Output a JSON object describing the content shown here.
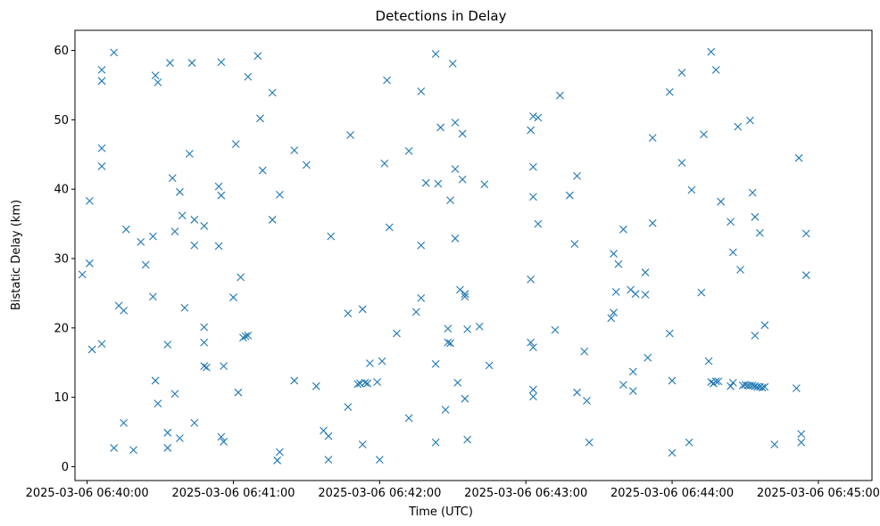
{
  "chart_data": {
    "type": "scatter",
    "title": "Detections in Delay",
    "xlabel": "Time (UTC)",
    "ylabel": "Bistatic Delay (km)",
    "marker": "x",
    "color": "#1f77b4",
    "grid": false,
    "legend": "none",
    "xlim": [
      "2025-03-06 06:39:55",
      "2025-03-06 06:45:22"
    ],
    "ylim": [
      -2.0,
      62.9
    ],
    "xticks": [
      {
        "value": "2025-03-06 06:40:00",
        "label": "2025-03-06 06:40:00"
      },
      {
        "value": "2025-03-06 06:41:00",
        "label": "2025-03-06 06:41:00"
      },
      {
        "value": "2025-03-06 06:42:00",
        "label": "2025-03-06 06:42:00"
      },
      {
        "value": "2025-03-06 06:43:00",
        "label": "2025-03-06 06:43:00"
      },
      {
        "value": "2025-03-06 06:44:00",
        "label": "2025-03-06 06:44:00"
      },
      {
        "value": "2025-03-06 06:45:00",
        "label": "2025-03-06 06:45:00"
      }
    ],
    "yticks": [
      0,
      10,
      20,
      30,
      40,
      50,
      60
    ],
    "points": [
      [
        "06:39:58",
        27.7
      ],
      [
        "06:40:01",
        38.3
      ],
      [
        "06:40:01",
        29.3
      ],
      [
        "06:40:02",
        16.9
      ],
      [
        "06:40:06",
        57.2
      ],
      [
        "06:40:06",
        55.6
      ],
      [
        "06:40:06",
        45.9
      ],
      [
        "06:40:06",
        43.3
      ],
      [
        "06:40:06",
        17.7
      ],
      [
        "06:40:11",
        59.7
      ],
      [
        "06:40:11",
        2.7
      ],
      [
        "06:40:13",
        23.2
      ],
      [
        "06:40:15",
        22.5
      ],
      [
        "06:40:15",
        6.3
      ],
      [
        "06:40:16",
        34.2
      ],
      [
        "06:40:19",
        2.4
      ],
      [
        "06:40:22",
        32.4
      ],
      [
        "06:40:24",
        29.1
      ],
      [
        "06:40:27",
        33.2
      ],
      [
        "06:40:27",
        24.5
      ],
      [
        "06:40:28",
        12.4
      ],
      [
        "06:40:28",
        56.4
      ],
      [
        "06:40:29",
        55.4
      ],
      [
        "06:40:29",
        9.1
      ],
      [
        "06:40:33",
        17.6
      ],
      [
        "06:40:33",
        4.9
      ],
      [
        "06:40:33",
        2.7
      ],
      [
        "06:40:34",
        58.2
      ],
      [
        "06:40:35",
        41.6
      ],
      [
        "06:40:36",
        33.9
      ],
      [
        "06:40:36",
        10.5
      ],
      [
        "06:40:38",
        39.6
      ],
      [
        "06:40:38",
        4.1
      ],
      [
        "06:40:39",
        36.2
      ],
      [
        "06:40:40",
        22.9
      ],
      [
        "06:40:42",
        45.1
      ],
      [
        "06:40:43",
        58.2
      ],
      [
        "06:40:44",
        35.6
      ],
      [
        "06:40:44",
        31.9
      ],
      [
        "06:40:44",
        6.3
      ],
      [
        "06:40:48",
        34.7
      ],
      [
        "06:40:48",
        20.1
      ],
      [
        "06:40:48",
        17.9
      ],
      [
        "06:40:48",
        14.5
      ],
      [
        "06:40:49",
        14.3
      ],
      [
        "06:40:54",
        40.4
      ],
      [
        "06:40:54",
        31.8
      ],
      [
        "06:40:55",
        58.3
      ],
      [
        "06:40:55",
        39.1
      ],
      [
        "06:40:56",
        14.5
      ],
      [
        "06:40:55",
        4.3
      ],
      [
        "06:40:56",
        3.6
      ],
      [
        "06:41:00",
        24.4
      ],
      [
        "06:41:01",
        46.5
      ],
      [
        "06:41:02",
        10.7
      ],
      [
        "06:41:03",
        27.3
      ],
      [
        "06:41:04",
        18.6
      ],
      [
        "06:41:05",
        18.8
      ],
      [
        "06:41:06",
        56.2
      ],
      [
        "06:41:06",
        18.9
      ],
      [
        "06:41:10",
        59.2
      ],
      [
        "06:41:11",
        50.2
      ],
      [
        "06:41:12",
        42.7
      ],
      [
        "06:41:16",
        53.9
      ],
      [
        "06:41:16",
        35.6
      ],
      [
        "06:41:18",
        0.9
      ],
      [
        "06:41:19",
        2.1
      ],
      [
        "06:41:19",
        39.2
      ],
      [
        "06:41:25",
        45.6
      ],
      [
        "06:41:25",
        12.4
      ],
      [
        "06:41:30",
        43.5
      ],
      [
        "06:41:34",
        11.6
      ],
      [
        "06:41:37",
        5.2
      ],
      [
        "06:41:39",
        4.4
      ],
      [
        "06:41:39",
        1.0
      ],
      [
        "06:41:40",
        33.2
      ],
      [
        "06:41:47",
        22.1
      ],
      [
        "06:41:47",
        8.6
      ],
      [
        "06:41:48",
        47.8
      ],
      [
        "06:41:51",
        11.9
      ],
      [
        "06:41:52",
        12.0
      ],
      [
        "06:41:53",
        22.7
      ],
      [
        "06:41:53",
        3.2
      ],
      [
        "06:41:54",
        12.1
      ],
      [
        "06:41:55",
        12.0
      ],
      [
        "06:41:56",
        14.9
      ],
      [
        "06:41:59",
        12.2
      ],
      [
        "06:42:00",
        1.0
      ],
      [
        "06:42:01",
        15.2
      ],
      [
        "06:42:02",
        43.7
      ],
      [
        "06:42:03",
        55.7
      ],
      [
        "06:42:04",
        34.5
      ],
      [
        "06:42:07",
        19.2
      ],
      [
        "06:42:12",
        45.5
      ],
      [
        "06:42:12",
        7.0
      ],
      [
        "06:42:15",
        22.3
      ],
      [
        "06:42:17",
        54.1
      ],
      [
        "06:42:17",
        31.9
      ],
      [
        "06:42:17",
        24.3
      ],
      [
        "06:42:19",
        40.9
      ],
      [
        "06:42:23",
        59.5
      ],
      [
        "06:42:24",
        40.8
      ],
      [
        "06:42:25",
        48.9
      ],
      [
        "06:42:23",
        14.8
      ],
      [
        "06:42:23",
        3.5
      ],
      [
        "06:42:27",
        8.2
      ],
      [
        "06:42:28",
        19.9
      ],
      [
        "06:42:28",
        17.9
      ],
      [
        "06:42:29",
        17.8
      ],
      [
        "06:42:29",
        38.4
      ],
      [
        "06:42:30",
        58.1
      ],
      [
        "06:42:31",
        32.9
      ],
      [
        "06:42:31",
        42.9
      ],
      [
        "06:42:31",
        49.6
      ],
      [
        "06:42:32",
        12.1
      ],
      [
        "06:42:33",
        25.5
      ],
      [
        "06:42:34",
        48.0
      ],
      [
        "06:42:34",
        41.4
      ],
      [
        "06:42:35",
        24.9
      ],
      [
        "06:42:35",
        24.5
      ],
      [
        "06:42:35",
        9.8
      ],
      [
        "06:42:36",
        19.8
      ],
      [
        "06:42:36",
        3.9
      ],
      [
        "06:42:41",
        20.2
      ],
      [
        "06:42:43",
        40.7
      ],
      [
        "06:42:45",
        14.6
      ],
      [
        "06:43:02",
        48.5
      ],
      [
        "06:43:02",
        27.0
      ],
      [
        "06:43:02",
        17.9
      ],
      [
        "06:43:03",
        50.5
      ],
      [
        "06:43:03",
        43.2
      ],
      [
        "06:43:03",
        38.9
      ],
      [
        "06:43:03",
        17.2
      ],
      [
        "06:43:03",
        11.1
      ],
      [
        "06:43:03",
        10.1
      ],
      [
        "06:43:05",
        50.3
      ],
      [
        "06:43:05",
        35.0
      ],
      [
        "06:43:12",
        19.7
      ],
      [
        "06:43:14",
        53.5
      ],
      [
        "06:43:18",
        39.1
      ],
      [
        "06:43:20",
        32.1
      ],
      [
        "06:43:21",
        41.9
      ],
      [
        "06:43:21",
        10.7
      ],
      [
        "06:43:24",
        16.6
      ],
      [
        "06:43:25",
        9.5
      ],
      [
        "06:43:26",
        3.5
      ],
      [
        "06:43:35",
        21.4
      ],
      [
        "06:43:36",
        30.7
      ],
      [
        "06:43:36",
        22.2
      ],
      [
        "06:43:37",
        25.2
      ],
      [
        "06:43:38",
        29.2
      ],
      [
        "06:43:40",
        34.2
      ],
      [
        "06:43:40",
        11.8
      ],
      [
        "06:43:43",
        25.5
      ],
      [
        "06:43:44",
        13.7
      ],
      [
        "06:43:44",
        10.9
      ],
      [
        "06:43:45",
        24.9
      ],
      [
        "06:43:49",
        24.8
      ],
      [
        "06:43:49",
        28.0
      ],
      [
        "06:43:50",
        15.7
      ],
      [
        "06:43:52",
        47.4
      ],
      [
        "06:43:52",
        35.1
      ],
      [
        "06:43:59",
        54.0
      ],
      [
        "06:43:59",
        19.2
      ],
      [
        "06:44:00",
        12.4
      ],
      [
        "06:44:00",
        2.0
      ],
      [
        "06:44:04",
        56.8
      ],
      [
        "06:44:04",
        43.8
      ],
      [
        "06:44:07",
        3.5
      ],
      [
        "06:44:08",
        39.9
      ],
      [
        "06:44:12",
        25.1
      ],
      [
        "06:44:13",
        47.9
      ],
      [
        "06:44:15",
        15.2
      ],
      [
        "06:44:16",
        59.8
      ],
      [
        "06:44:16",
        12.2
      ],
      [
        "06:44:17",
        12.0
      ],
      [
        "06:44:18",
        57.2
      ],
      [
        "06:44:18",
        12.3
      ],
      [
        "06:44:19",
        12.3
      ],
      [
        "06:44:20",
        38.2
      ],
      [
        "06:44:24",
        35.3
      ],
      [
        "06:44:25",
        30.9
      ],
      [
        "06:44:24",
        11.6
      ],
      [
        "06:44:25",
        12.1
      ],
      [
        "06:44:27",
        49.0
      ],
      [
        "06:44:28",
        28.4
      ],
      [
        "06:44:29",
        11.7
      ],
      [
        "06:44:30",
        11.8
      ],
      [
        "06:44:31",
        11.7
      ],
      [
        "06:44:32",
        11.7
      ],
      [
        "06:44:32",
        49.9
      ],
      [
        "06:44:33",
        39.5
      ],
      [
        "06:44:33",
        11.7
      ],
      [
        "06:44:34",
        36.0
      ],
      [
        "06:44:34",
        11.6
      ],
      [
        "06:44:34",
        18.9
      ],
      [
        "06:44:35",
        11.5
      ],
      [
        "06:44:36",
        11.5
      ],
      [
        "06:44:36",
        33.7
      ],
      [
        "06:44:37",
        11.4
      ],
      [
        "06:44:38",
        20.4
      ],
      [
        "06:44:38",
        11.5
      ],
      [
        "06:44:42",
        3.2
      ],
      [
        "06:44:51",
        11.3
      ],
      [
        "06:44:52",
        44.5
      ],
      [
        "06:44:53",
        4.7
      ],
      [
        "06:44:53",
        3.5
      ],
      [
        "06:44:55",
        33.6
      ],
      [
        "06:44:55",
        27.6
      ]
    ]
  }
}
